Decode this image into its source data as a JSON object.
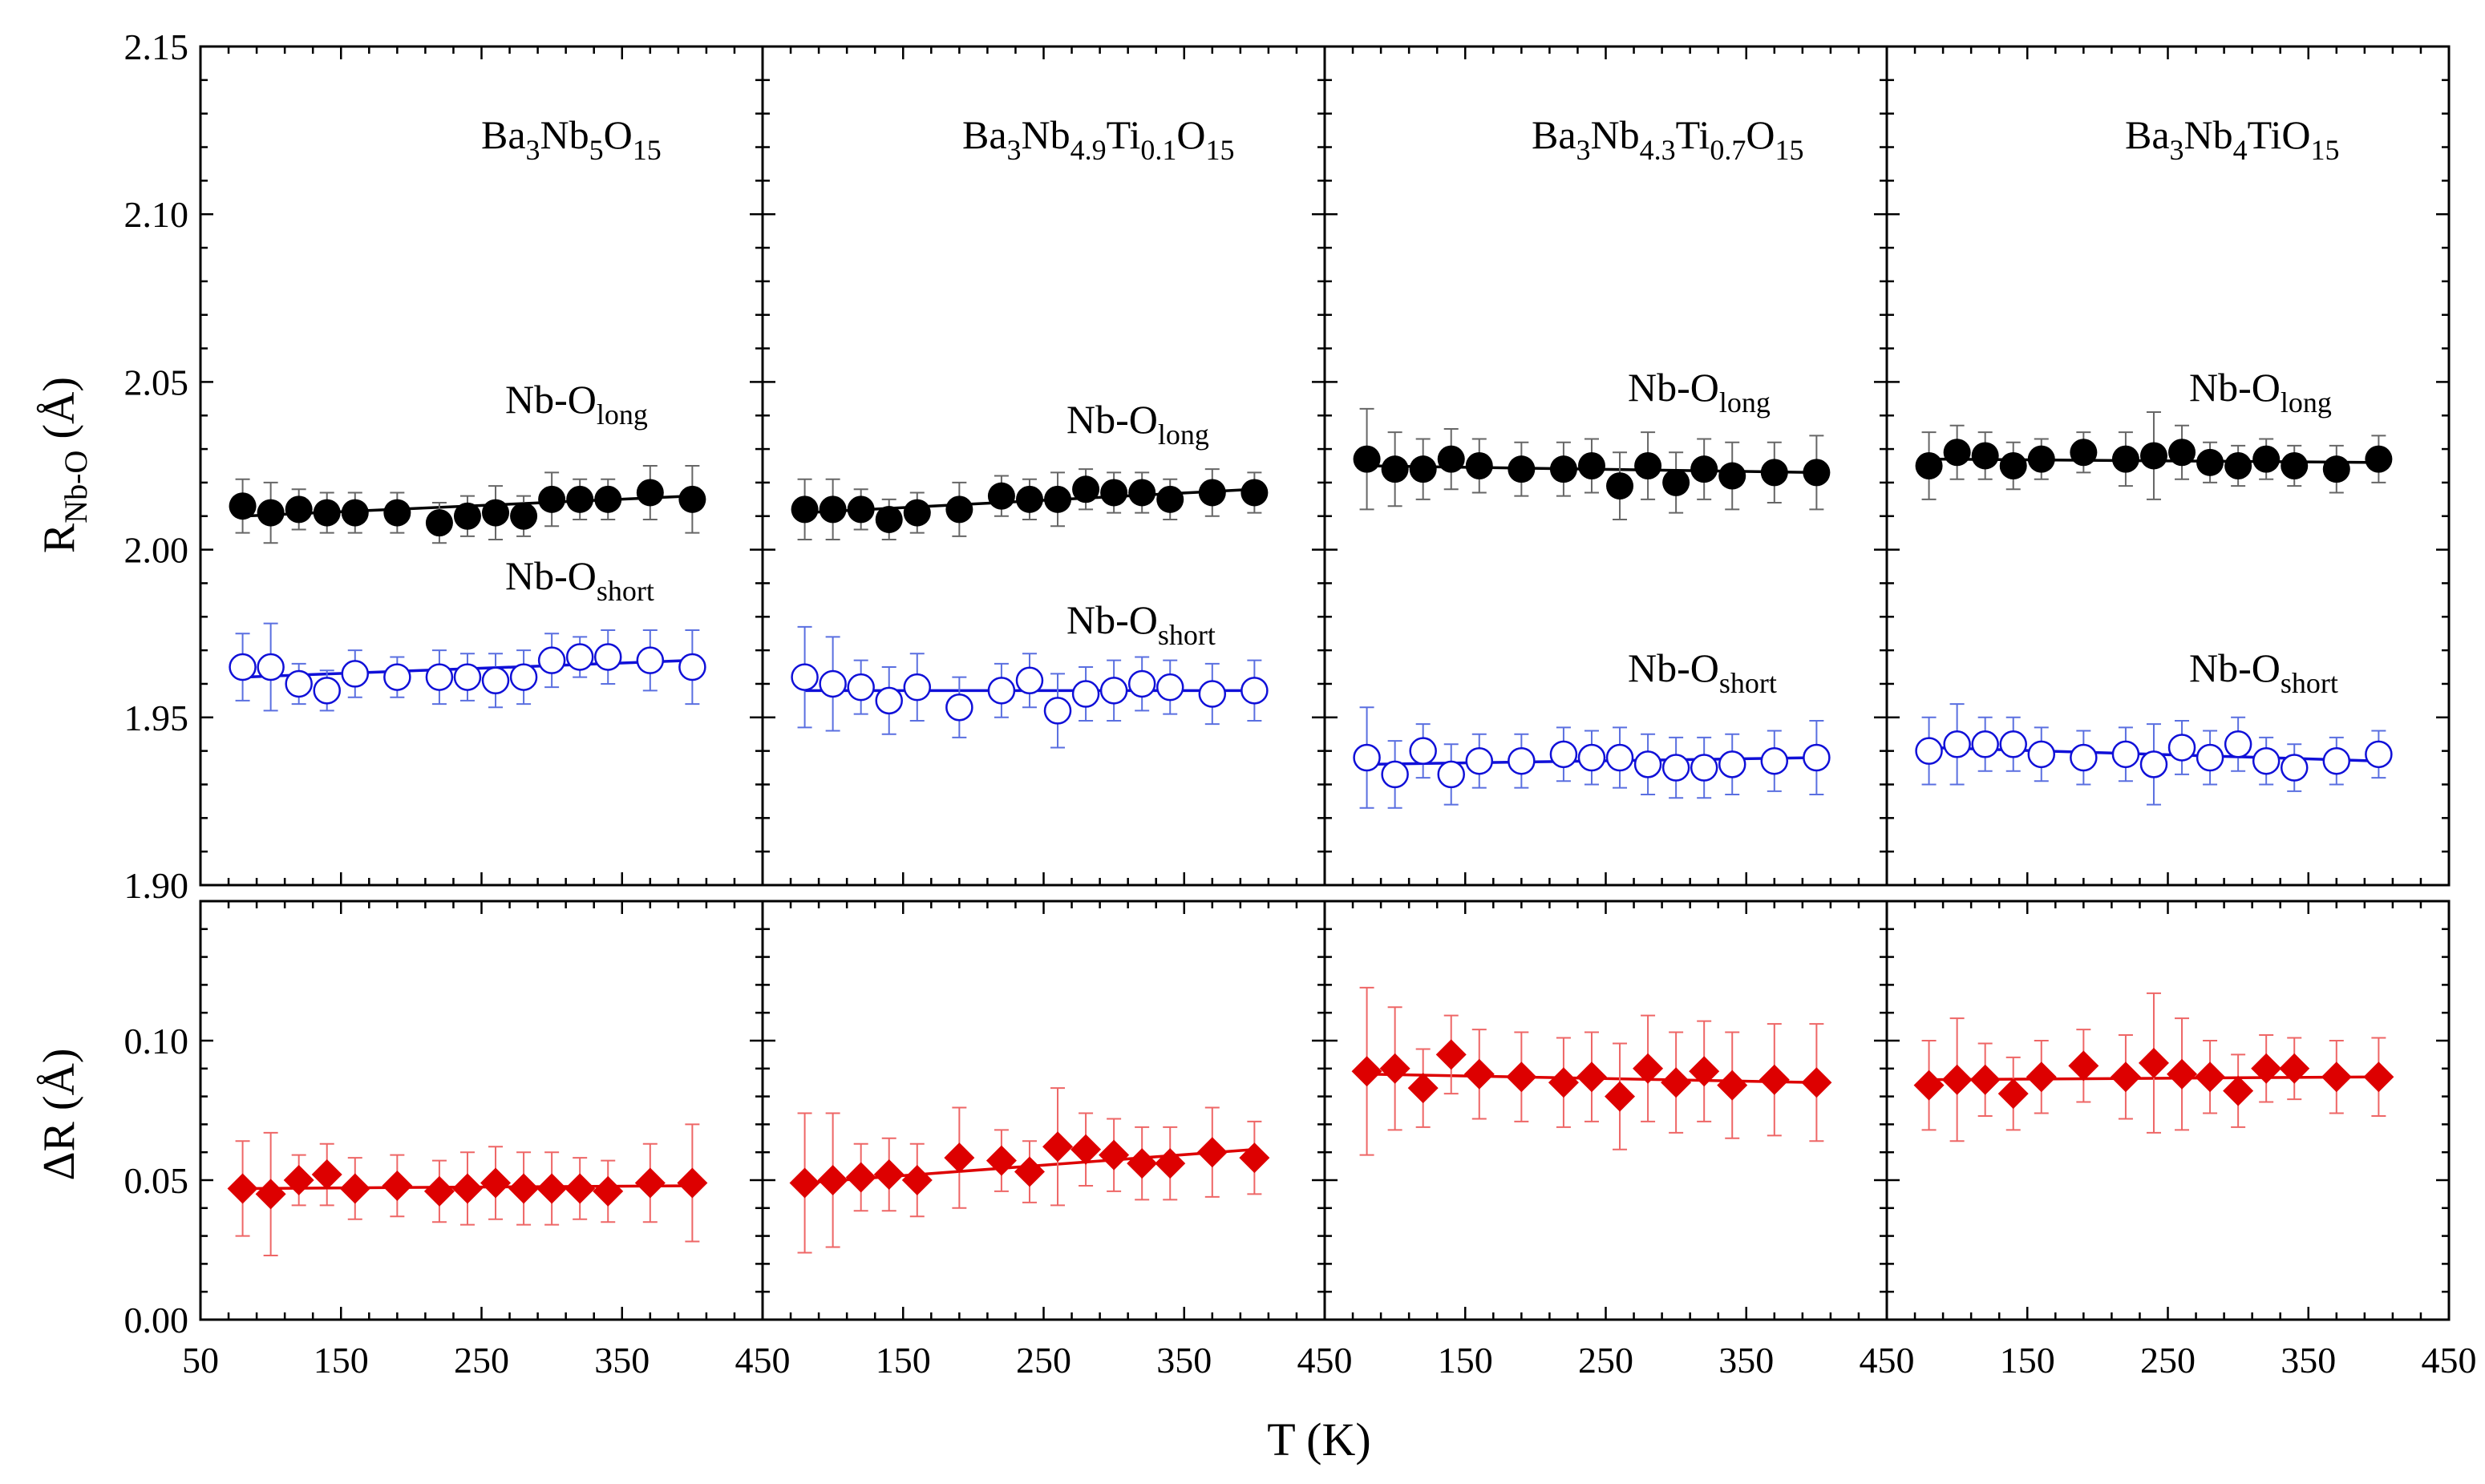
{
  "figure": {
    "ylabel_top": "R",
    "ylabel_top_sub": "Nb-O",
    "ylabel_top_unit": " (Å)",
    "ylabel_bottom": "ΔR (Å)",
    "xlabel": "T (K)",
    "series_label_long": "Nb-O",
    "series_label_long_sub": "long",
    "series_label_short": "Nb-O",
    "series_label_short_sub": "short",
    "colors": {
      "long": "#000000",
      "short": "#1010d8",
      "delta": "#dd0000",
      "errbar_long": "#666666",
      "errbar_short": "#5a6fe0",
      "errbar_delta": "#ee6666"
    }
  },
  "chart_data": [
    {
      "type": "scatter",
      "title_parts": [
        [
          "Ba",
          ""
        ],
        [
          "3",
          "sub"
        ],
        [
          "Nb",
          ""
        ],
        [
          "5",
          "sub"
        ],
        [
          "O",
          ""
        ],
        [
          "15",
          "sub"
        ]
      ],
      "xlabel": "T (K)",
      "ylabel": "R_Nb-O (Å)",
      "xlim": [
        50,
        450
      ],
      "xticks": [
        50,
        150,
        250,
        350,
        450
      ],
      "ylim_top": [
        1.9,
        2.15
      ],
      "ylim_bottom": [
        0.0,
        0.15
      ],
      "series": [
        {
          "name": "Nb-O long",
          "marker": "filled-circle",
          "x": [
            80,
            100,
            120,
            140,
            160,
            190,
            220,
            240,
            260,
            280,
            300,
            320,
            340,
            370,
            400
          ],
          "y": [
            2.013,
            2.011,
            2.012,
            2.011,
            2.011,
            2.011,
            2.008,
            2.01,
            2.011,
            2.01,
            2.015,
            2.015,
            2.015,
            2.017,
            2.015
          ],
          "err": [
            0.008,
            0.009,
            0.006,
            0.006,
            0.006,
            0.006,
            0.006,
            0.006,
            0.008,
            0.006,
            0.008,
            0.006,
            0.006,
            0.008,
            0.01
          ],
          "fit": [
            2.01,
            2.016
          ]
        },
        {
          "name": "Nb-O short",
          "marker": "open-circle",
          "x": [
            80,
            100,
            120,
            140,
            160,
            190,
            220,
            240,
            260,
            280,
            300,
            320,
            340,
            370,
            400
          ],
          "y": [
            1.965,
            1.965,
            1.96,
            1.958,
            1.963,
            1.962,
            1.962,
            1.962,
            1.961,
            1.962,
            1.967,
            1.968,
            1.968,
            1.967,
            1.965
          ],
          "err": [
            0.01,
            0.013,
            0.006,
            0.006,
            0.007,
            0.006,
            0.008,
            0.007,
            0.008,
            0.008,
            0.008,
            0.006,
            0.008,
            0.009,
            0.011
          ],
          "fit": [
            1.962,
            1.967
          ]
        },
        {
          "name": "ΔR",
          "marker": "filled-diamond",
          "x": [
            80,
            100,
            120,
            140,
            160,
            190,
            220,
            240,
            260,
            280,
            300,
            320,
            340,
            370,
            400
          ],
          "y": [
            0.047,
            0.045,
            0.05,
            0.052,
            0.047,
            0.048,
            0.046,
            0.047,
            0.049,
            0.047,
            0.047,
            0.047,
            0.046,
            0.049,
            0.049
          ],
          "err": [
            0.017,
            0.022,
            0.009,
            0.011,
            0.011,
            0.011,
            0.011,
            0.013,
            0.013,
            0.013,
            0.013,
            0.011,
            0.011,
            0.014,
            0.021
          ],
          "fit": [
            0.047,
            0.048
          ]
        }
      ]
    },
    {
      "type": "scatter",
      "title_parts": [
        [
          "Ba",
          ""
        ],
        [
          "3",
          "sub"
        ],
        [
          "Nb",
          ""
        ],
        [
          "4.9",
          "sub"
        ],
        [
          "Ti",
          ""
        ],
        [
          "0.1",
          "sub"
        ],
        [
          "O",
          ""
        ],
        [
          "15",
          "sub"
        ]
      ],
      "xlabel": "T (K)",
      "ylabel": "R_Nb-O (Å)",
      "xlim": [
        50,
        450
      ],
      "xticks": [
        50,
        150,
        250,
        350,
        450
      ],
      "ylim_top": [
        1.9,
        2.15
      ],
      "ylim_bottom": [
        0.0,
        0.15
      ],
      "series": [
        {
          "name": "Nb-O long",
          "marker": "filled-circle",
          "x": [
            80,
            100,
            120,
            140,
            160,
            190,
            220,
            240,
            260,
            280,
            300,
            320,
            340,
            370,
            400
          ],
          "y": [
            2.012,
            2.012,
            2.012,
            2.009,
            2.011,
            2.012,
            2.016,
            2.015,
            2.015,
            2.018,
            2.017,
            2.017,
            2.015,
            2.017,
            2.017
          ],
          "err": [
            0.009,
            0.009,
            0.006,
            0.006,
            0.006,
            0.008,
            0.006,
            0.006,
            0.008,
            0.006,
            0.006,
            0.006,
            0.006,
            0.007,
            0.006
          ],
          "fit": [
            2.011,
            2.018
          ]
        },
        {
          "name": "Nb-O short",
          "marker": "open-circle",
          "x": [
            80,
            100,
            120,
            140,
            160,
            190,
            220,
            240,
            260,
            280,
            300,
            320,
            340,
            370,
            400
          ],
          "y": [
            1.962,
            1.96,
            1.959,
            1.955,
            1.959,
            1.953,
            1.958,
            1.961,
            1.952,
            1.957,
            1.958,
            1.96,
            1.959,
            1.957,
            1.958
          ],
          "err": [
            0.015,
            0.014,
            0.008,
            0.01,
            0.01,
            0.009,
            0.008,
            0.008,
            0.011,
            0.008,
            0.009,
            0.008,
            0.008,
            0.009,
            0.009
          ],
          "fit": [
            1.958,
            1.958
          ]
        },
        {
          "name": "ΔR",
          "marker": "filled-diamond",
          "x": [
            80,
            100,
            120,
            140,
            160,
            190,
            220,
            240,
            260,
            280,
            300,
            320,
            340,
            370,
            400
          ],
          "y": [
            0.049,
            0.05,
            0.051,
            0.052,
            0.05,
            0.058,
            0.057,
            0.053,
            0.062,
            0.061,
            0.059,
            0.056,
            0.056,
            0.06,
            0.058
          ],
          "err": [
            0.025,
            0.024,
            0.012,
            0.013,
            0.013,
            0.018,
            0.011,
            0.011,
            0.021,
            0.013,
            0.013,
            0.013,
            0.013,
            0.016,
            0.013
          ],
          "fit": [
            0.049,
            0.061
          ]
        }
      ]
    },
    {
      "type": "scatter",
      "title_parts": [
        [
          "Ba",
          ""
        ],
        [
          "3",
          "sub"
        ],
        [
          "Nb",
          ""
        ],
        [
          "4.3",
          "sub"
        ],
        [
          "Ti",
          ""
        ],
        [
          "0.7",
          "sub"
        ],
        [
          "O",
          ""
        ],
        [
          "15",
          "sub"
        ]
      ],
      "xlabel": "T (K)",
      "ylabel": "R_Nb-O (Å)",
      "xlim": [
        50,
        450
      ],
      "xticks": [
        50,
        150,
        250,
        350,
        450
      ],
      "ylim_top": [
        1.9,
        2.15
      ],
      "ylim_bottom": [
        0.0,
        0.15
      ],
      "series": [
        {
          "name": "Nb-O long",
          "marker": "filled-circle",
          "x": [
            80,
            100,
            120,
            140,
            160,
            190,
            220,
            240,
            260,
            280,
            300,
            320,
            340,
            370,
            400
          ],
          "y": [
            2.027,
            2.024,
            2.024,
            2.027,
            2.025,
            2.024,
            2.024,
            2.025,
            2.019,
            2.025,
            2.02,
            2.024,
            2.022,
            2.023,
            2.023
          ],
          "err": [
            0.015,
            0.011,
            0.009,
            0.009,
            0.008,
            0.008,
            0.008,
            0.008,
            0.01,
            0.01,
            0.009,
            0.009,
            0.01,
            0.009,
            0.011
          ],
          "fit": [
            2.025,
            2.023
          ]
        },
        {
          "name": "Nb-O short",
          "marker": "open-circle",
          "x": [
            80,
            100,
            120,
            140,
            160,
            190,
            220,
            240,
            260,
            280,
            300,
            320,
            340,
            370,
            400
          ],
          "y": [
            1.938,
            1.933,
            1.94,
            1.933,
            1.937,
            1.937,
            1.939,
            1.938,
            1.938,
            1.936,
            1.935,
            1.935,
            1.936,
            1.937,
            1.938
          ],
          "err": [
            0.015,
            0.01,
            0.008,
            0.009,
            0.008,
            0.008,
            0.008,
            0.008,
            0.009,
            0.009,
            0.009,
            0.009,
            0.009,
            0.009,
            0.011
          ],
          "fit": [
            1.936,
            1.938
          ]
        },
        {
          "name": "ΔR",
          "marker": "filled-diamond",
          "x": [
            80,
            100,
            120,
            140,
            160,
            190,
            220,
            240,
            260,
            280,
            300,
            320,
            340,
            370,
            400
          ],
          "y": [
            0.089,
            0.09,
            0.083,
            0.095,
            0.088,
            0.087,
            0.085,
            0.087,
            0.08,
            0.09,
            0.085,
            0.089,
            0.084,
            0.086,
            0.085
          ],
          "err": [
            0.03,
            0.022,
            0.014,
            0.014,
            0.016,
            0.016,
            0.016,
            0.016,
            0.019,
            0.019,
            0.018,
            0.018,
            0.019,
            0.02,
            0.021
          ],
          "fit": [
            0.088,
            0.085
          ]
        }
      ]
    },
    {
      "type": "scatter",
      "title_parts": [
        [
          "Ba",
          ""
        ],
        [
          "3",
          "sub"
        ],
        [
          "Nb",
          ""
        ],
        [
          "4",
          "sub"
        ],
        [
          "TiO",
          ""
        ],
        [
          "15",
          "sub"
        ]
      ],
      "xlabel": "T (K)",
      "ylabel": "R_Nb-O (Å)",
      "xlim": [
        50,
        450
      ],
      "xticks": [
        50,
        150,
        250,
        350,
        450
      ],
      "ylim_top": [
        1.9,
        2.15
      ],
      "ylim_bottom": [
        0.0,
        0.15
      ],
      "series": [
        {
          "name": "Nb-O long",
          "marker": "filled-circle",
          "x": [
            80,
            100,
            120,
            140,
            160,
            190,
            220,
            240,
            260,
            280,
            300,
            320,
            340,
            370,
            400
          ],
          "y": [
            2.025,
            2.029,
            2.028,
            2.025,
            2.027,
            2.029,
            2.027,
            2.028,
            2.029,
            2.026,
            2.025,
            2.027,
            2.025,
            2.024,
            2.027
          ],
          "err": [
            0.01,
            0.008,
            0.007,
            0.007,
            0.006,
            0.006,
            0.008,
            0.013,
            0.008,
            0.006,
            0.006,
            0.006,
            0.006,
            0.007,
            0.007
          ],
          "fit": [
            2.027,
            2.026
          ]
        },
        {
          "name": "Nb-O short",
          "marker": "open-circle",
          "x": [
            80,
            100,
            120,
            140,
            160,
            190,
            220,
            240,
            260,
            280,
            300,
            320,
            340,
            370,
            400
          ],
          "y": [
            1.94,
            1.942,
            1.942,
            1.942,
            1.939,
            1.938,
            1.939,
            1.936,
            1.941,
            1.938,
            1.942,
            1.937,
            1.935,
            1.937,
            1.939
          ],
          "err": [
            0.01,
            0.012,
            0.008,
            0.008,
            0.008,
            0.008,
            0.008,
            0.012,
            0.008,
            0.008,
            0.008,
            0.007,
            0.007,
            0.007,
            0.007
          ],
          "fit": [
            1.941,
            1.937
          ]
        },
        {
          "name": "ΔR",
          "marker": "filled-diamond",
          "x": [
            80,
            100,
            120,
            140,
            160,
            190,
            220,
            240,
            260,
            280,
            300,
            320,
            340,
            370,
            400
          ],
          "y": [
            0.084,
            0.086,
            0.086,
            0.081,
            0.087,
            0.091,
            0.087,
            0.092,
            0.088,
            0.087,
            0.082,
            0.09,
            0.09,
            0.087,
            0.087
          ],
          "err": [
            0.016,
            0.022,
            0.013,
            0.013,
            0.013,
            0.013,
            0.015,
            0.025,
            0.02,
            0.013,
            0.013,
            0.012,
            0.011,
            0.013,
            0.014
          ],
          "fit": [
            0.086,
            0.087
          ]
        }
      ]
    }
  ],
  "axis_tick_labels": {
    "y_top": [
      "1.90",
      "1.95",
      "2.00",
      "2.05",
      "2.10",
      "2.15"
    ],
    "y_bottom": [
      "0.00",
      "0.05",
      "0.10"
    ],
    "x": [
      "50",
      "150",
      "250",
      "350",
      "450"
    ]
  }
}
